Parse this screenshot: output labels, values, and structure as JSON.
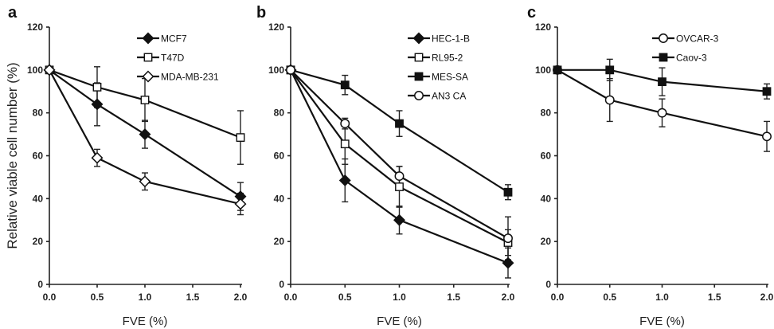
{
  "chart_data": [
    {
      "panel": "a",
      "type": "line",
      "title": "",
      "xlabel": "FVE (%)",
      "ylabel": "Relative viable cell number (%)",
      "xlim": [
        0,
        2
      ],
      "ylim": [
        0,
        120
      ],
      "x_ticks": [
        "0.0",
        "0.5",
        "1.0",
        "1.5",
        "2.0"
      ],
      "y_ticks": [
        "0",
        "20",
        "40",
        "60",
        "80",
        "100",
        "120"
      ],
      "legend_position": "top-right",
      "x": [
        0,
        0.5,
        1.0,
        2.0
      ],
      "series": [
        {
          "name": "MCF7",
          "marker": "filled-diamond",
          "values": [
            100,
            84,
            70,
            41
          ],
          "errors": [
            0,
            10,
            6.5,
            6.5
          ]
        },
        {
          "name": "T47D",
          "marker": "open-square",
          "values": [
            100,
            92,
            86,
            68.5
          ],
          "errors": [
            0,
            9.5,
            10,
            12.5
          ]
        },
        {
          "name": "MDA-MB-231",
          "marker": "open-diamond",
          "values": [
            100,
            59,
            48,
            37.5
          ],
          "errors": [
            0,
            4,
            4,
            5
          ]
        }
      ]
    },
    {
      "panel": "b",
      "type": "line",
      "title": "",
      "xlabel": "FVE (%)",
      "ylabel": "",
      "xlim": [
        0,
        2
      ],
      "ylim": [
        0,
        120
      ],
      "x_ticks": [
        "0.0",
        "0.5",
        "1.0",
        "1.5",
        "2.0"
      ],
      "y_ticks": [
        "0",
        "20",
        "40",
        "60",
        "80",
        "100",
        "120"
      ],
      "legend_position": "top-right",
      "x": [
        0,
        0.5,
        1.0,
        2.0
      ],
      "series": [
        {
          "name": "HEC-1-B",
          "marker": "filled-diamond",
          "values": [
            100,
            48.5,
            30,
            10
          ],
          "errors": [
            0,
            10,
            6.5,
            7
          ]
        },
        {
          "name": "RL95-2",
          "marker": "open-square",
          "values": [
            100,
            65.5,
            45.5,
            19.5
          ],
          "errors": [
            0,
            9.5,
            9.5,
            6
          ]
        },
        {
          "name": "MES-SA",
          "marker": "filled-square",
          "values": [
            100,
            93,
            75,
            43
          ],
          "errors": [
            0,
            4.5,
            6,
            3.5
          ]
        },
        {
          "name": "AN3 CA",
          "marker": "open-circle",
          "values": [
            100,
            75,
            50.5,
            21.5
          ],
          "errors": [
            0,
            2.5,
            4.5,
            10
          ]
        }
      ]
    },
    {
      "panel": "c",
      "type": "line",
      "title": "",
      "xlabel": "FVE (%)",
      "ylabel": "",
      "xlim": [
        0,
        2
      ],
      "ylim": [
        0,
        120
      ],
      "x_ticks": [
        "0.0",
        "0.5",
        "1.0",
        "1.5",
        "2.0"
      ],
      "y_ticks": [
        "0",
        "20",
        "40",
        "60",
        "80",
        "100",
        "120"
      ],
      "legend_position": "top-right",
      "x": [
        0,
        0.5,
        1.0,
        2.0
      ],
      "series": [
        {
          "name": "OVCAR-3",
          "marker": "open-circle",
          "values": [
            100,
            86,
            80,
            69
          ],
          "errors": [
            0,
            10,
            6.5,
            7
          ]
        },
        {
          "name": "Caov-3",
          "marker": "filled-square",
          "values": [
            100,
            100,
            94.5,
            90
          ],
          "errors": [
            0,
            5,
            6.5,
            3.5
          ]
        }
      ]
    }
  ]
}
